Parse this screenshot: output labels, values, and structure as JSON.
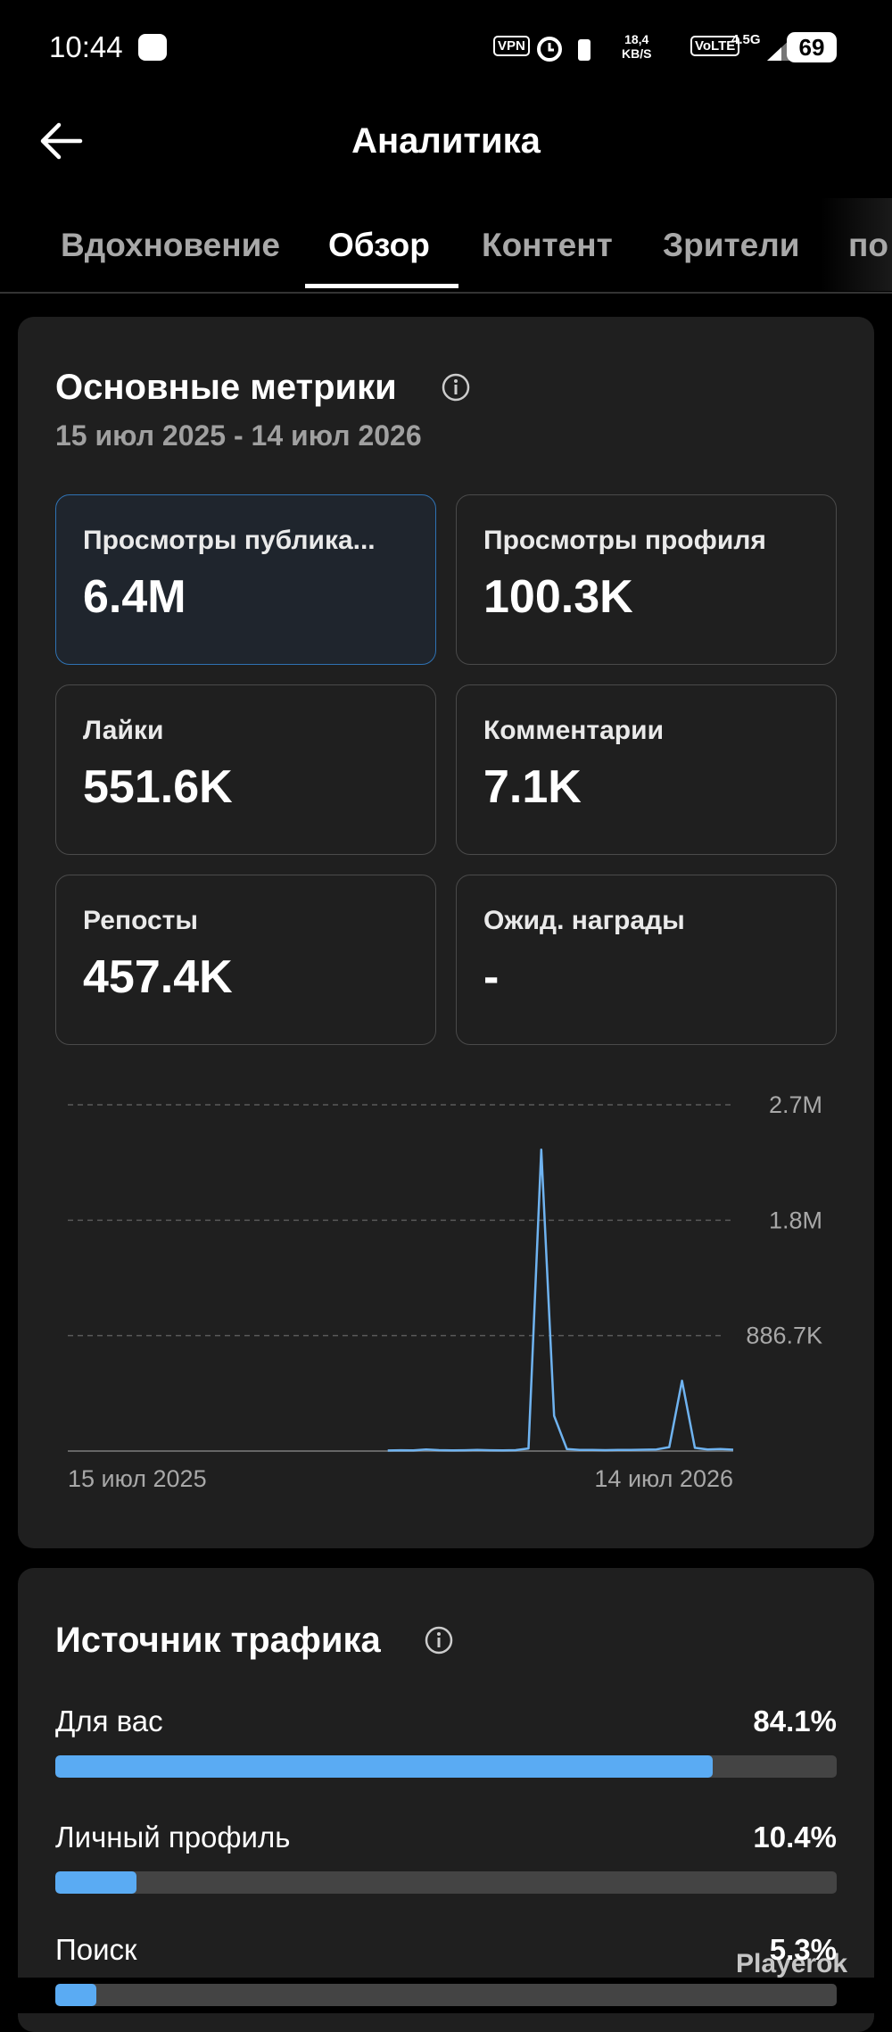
{
  "status_bar": {
    "time": "10:44",
    "vpn": "VPN",
    "speed": "18,4",
    "speed_unit": "KB/S",
    "volte": "VoLTE",
    "network": "4.5G",
    "battery": "69"
  },
  "header": {
    "title": "Аналитика"
  },
  "tabs": [
    "Вдохновение",
    "Обзор",
    "Контент",
    "Зрители",
    "по"
  ],
  "metrics_card": {
    "title": "Основные метрики",
    "date_range": "15 июл 2025 - 14 июл 2026",
    "metrics": [
      {
        "label": "Просмотры публика...",
        "value": "6.4M"
      },
      {
        "label": "Просмотры профиля",
        "value": "100.3K"
      },
      {
        "label": "Лайки",
        "value": "551.6K"
      },
      {
        "label": "Комментарии",
        "value": "7.1K"
      },
      {
        "label": "Репосты",
        "value": "457.4K"
      },
      {
        "label": "Ожид. награды",
        "value": "-"
      }
    ]
  },
  "chart_data": {
    "type": "line",
    "categories": [
      "15 июл 2025",
      null,
      null,
      null,
      null,
      null,
      null,
      null,
      null,
      null,
      null,
      null,
      null,
      null,
      null,
      null,
      null,
      null,
      null,
      null,
      null,
      null,
      null,
      null,
      null,
      null,
      null,
      null,
      null,
      null,
      null,
      null,
      null,
      null,
      null,
      null,
      null,
      null,
      null,
      null,
      null,
      null,
      null,
      null,
      null,
      null,
      null,
      null,
      null,
      null,
      null,
      null,
      "14 июл 2026"
    ],
    "series": [
      {
        "name": "Просмотры публикаций",
        "color": "#6fb3f0",
        "values": [
          null,
          null,
          null,
          null,
          null,
          null,
          null,
          null,
          null,
          null,
          null,
          null,
          null,
          null,
          null,
          null,
          null,
          null,
          null,
          null,
          null,
          null,
          null,
          null,
          null,
          4000,
          6000,
          5000,
          12000,
          7000,
          5000,
          6000,
          8000,
          6000,
          5000,
          7000,
          20000,
          2315000,
          270000,
          15000,
          9000,
          8000,
          7000,
          9000,
          8000,
          10000,
          12000,
          30000,
          540000,
          25000,
          12000,
          15000,
          10000
        ]
      }
    ],
    "ylim": [
      0,
      2660100
    ],
    "yticks": [
      {
        "value": 886700,
        "label": "886.7K"
      },
      {
        "value": 1773400,
        "label": "1.8M"
      },
      {
        "value": 2660100,
        "label": "2.7M"
      }
    ],
    "grid": true
  },
  "traffic_card": {
    "title": "Источник трафика",
    "sources": [
      {
        "name": "Для вас",
        "value": 84.1,
        "value_label": "84.1%"
      },
      {
        "name": "Личный профиль",
        "value": 10.4,
        "value_label": "10.4%"
      },
      {
        "name": "Поиск",
        "value": 5.3,
        "value_label": "5.3%"
      }
    ]
  },
  "watermark": "Playerok"
}
